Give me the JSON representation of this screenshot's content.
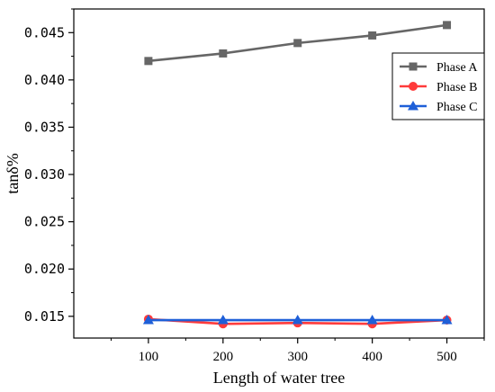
{
  "chart_data": {
    "type": "line",
    "xlabel": "Length of water tree",
    "ylabel": "tanδ%",
    "x": [
      100,
      200,
      300,
      400,
      500
    ],
    "xlim": [
      0,
      550
    ],
    "ylim": [
      0.0127,
      0.0475
    ],
    "x_ticks": [
      100,
      200,
      300,
      400,
      500
    ],
    "y_ticks": [
      0.015,
      0.02,
      0.025,
      0.03,
      0.035,
      0.04,
      0.045
    ],
    "y_tick_labels": [
      "0.015",
      "0.020",
      "0.025",
      "0.030",
      "0.035",
      "0.040",
      "0.045"
    ],
    "grid": false,
    "legend_position": "top-right",
    "series": [
      {
        "name": "Phase A",
        "values": [
          0.042,
          0.0428,
          0.0439,
          0.0447,
          0.0458
        ],
        "color": "#666666",
        "marker": "square"
      },
      {
        "name": "Phase B",
        "values": [
          0.0147,
          0.0142,
          0.0143,
          0.0142,
          0.0146
        ],
        "color": "#ff3b3b",
        "marker": "circle"
      },
      {
        "name": "Phase C",
        "values": [
          0.0146,
          0.0146,
          0.0146,
          0.0146,
          0.0146
        ],
        "color": "#1e5fd8",
        "marker": "triangle"
      }
    ]
  }
}
